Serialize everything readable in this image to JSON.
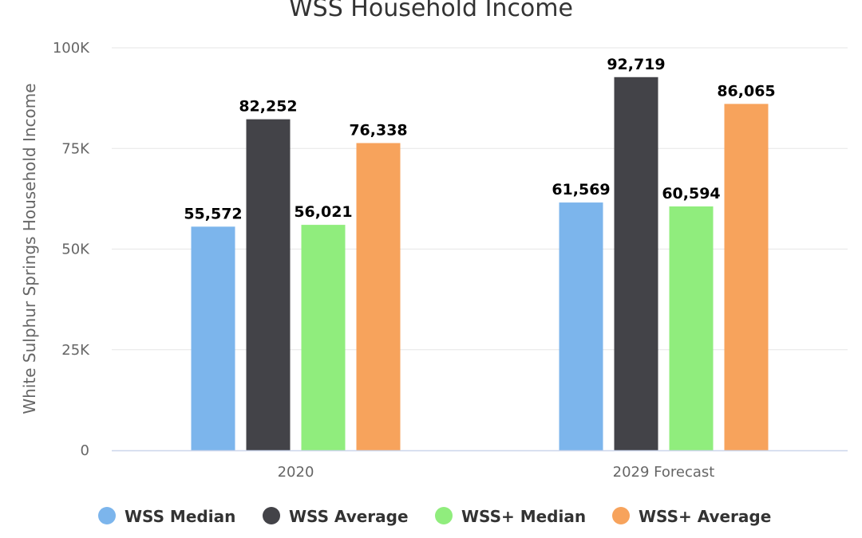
{
  "chart_data": {
    "type": "bar",
    "title": "WSS Household Income",
    "xlabel": "",
    "ylabel": "White Sulphur Springs Household Income",
    "categories": [
      "2020",
      "2029 Forecast"
    ],
    "ylim": [
      0,
      100000
    ],
    "yticks": [
      {
        "value": 0,
        "label": "0"
      },
      {
        "value": 25000,
        "label": "25K"
      },
      {
        "value": 50000,
        "label": "50K"
      },
      {
        "value": 75000,
        "label": "75K"
      },
      {
        "value": 100000,
        "label": "100K"
      }
    ],
    "grid": true,
    "legend_position": "bottom",
    "series": [
      {
        "name": "WSS Median",
        "color": "#7cb5ec",
        "values": [
          55572,
          61569
        ],
        "labels": [
          "55,572",
          "61,569"
        ]
      },
      {
        "name": "WSS Average",
        "color": "#434348",
        "values": [
          82252,
          92719
        ],
        "labels": [
          "82,252",
          "92,719"
        ]
      },
      {
        "name": "WSS+ Median",
        "color": "#90ed7d",
        "values": [
          56021,
          60594
        ],
        "labels": [
          "56,021",
          "60,594"
        ]
      },
      {
        "name": "WSS+ Average",
        "color": "#f7a35c",
        "values": [
          76338,
          86065
        ],
        "labels": [
          "76,338",
          "86,065"
        ]
      }
    ]
  }
}
